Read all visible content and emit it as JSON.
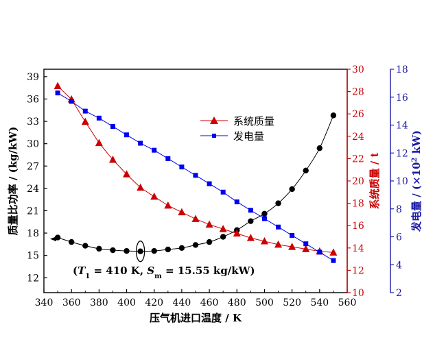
{
  "chart_data": {
    "type": "line",
    "xlabel": "压气机进口温度 / K",
    "xlim": [
      340,
      560
    ],
    "xticks": [
      340,
      360,
      380,
      400,
      420,
      440,
      460,
      480,
      500,
      520,
      540,
      560
    ],
    "axes": {
      "left": {
        "label": "质量比功率 / (kg/kW)",
        "ylim": [
          10,
          40
        ],
        "ticks": [
          12,
          15,
          18,
          21,
          24,
          27,
          30,
          33,
          36,
          39
        ],
        "color": "#000000"
      },
      "right1": {
        "label": "系统质量 / t",
        "ylim": [
          10,
          30
        ],
        "ticks": [
          10,
          12,
          14,
          16,
          18,
          20,
          22,
          24,
          26,
          28,
          30
        ],
        "color": "#cc0000"
      },
      "right2": {
        "label": "发电量 / (×10² kW)",
        "label_main": "发电量 / (×10",
        "label_sup": "2",
        "label_tail": " kW)",
        "ylim": [
          2,
          18
        ],
        "ticks": [
          2,
          4,
          6,
          8,
          10,
          12,
          14,
          16,
          18
        ],
        "color": "#1a1aa6"
      }
    },
    "series": [
      {
        "name": "",
        "axis": "left",
        "marker": "circle",
        "color": "#000000",
        "x": [
          350,
          360,
          370,
          380,
          390,
          400,
          410,
          420,
          430,
          440,
          450,
          460,
          470,
          480,
          490,
          500,
          510,
          520,
          530,
          540,
          550
        ],
        "values": [
          17.4,
          16.8,
          16.3,
          15.9,
          15.7,
          15.6,
          15.55,
          15.6,
          15.8,
          16.0,
          16.4,
          16.8,
          17.5,
          18.4,
          19.6,
          20.6,
          22.0,
          23.9,
          26.4,
          29.4,
          33.8
        ]
      },
      {
        "name": "系统质量",
        "axis": "right1",
        "marker": "triangle",
        "color": "#cc0000",
        "x": [
          350,
          360,
          370,
          380,
          390,
          400,
          410,
          420,
          430,
          440,
          450,
          460,
          470,
          480,
          490,
          500,
          510,
          520,
          530,
          540,
          550
        ],
        "values": [
          28.5,
          27.3,
          25.3,
          23.4,
          21.9,
          20.6,
          19.4,
          18.6,
          17.8,
          17.2,
          16.6,
          16.1,
          15.7,
          15.3,
          14.9,
          14.6,
          14.3,
          14.1,
          13.9,
          13.7,
          13.6
        ]
      },
      {
        "name": "发电量",
        "axis": "right2",
        "marker": "square",
        "color": "#0000ee",
        "x": [
          350,
          360,
          370,
          380,
          390,
          400,
          410,
          420,
          430,
          440,
          450,
          460,
          470,
          480,
          490,
          500,
          510,
          520,
          530,
          540,
          550
        ],
        "values": [
          16.3,
          15.7,
          15.0,
          14.5,
          13.9,
          13.3,
          12.7,
          12.2,
          11.6,
          11.0,
          10.4,
          9.8,
          9.2,
          8.5,
          7.9,
          7.3,
          6.7,
          6.1,
          5.5,
          4.9,
          4.3
        ]
      }
    ],
    "legend": {
      "position": "top-center",
      "entries": [
        "系统质量",
        "发电量"
      ]
    },
    "annotation": {
      "text_prefix": "(",
      "t_symbol": "T",
      "t_sub": "1",
      "t_value": " = 410 K, ",
      "s_symbol": "S",
      "s_sub": "m",
      "s_value": " = 15.55 kg/kW)",
      "x": 410,
      "y": 15.55
    }
  }
}
